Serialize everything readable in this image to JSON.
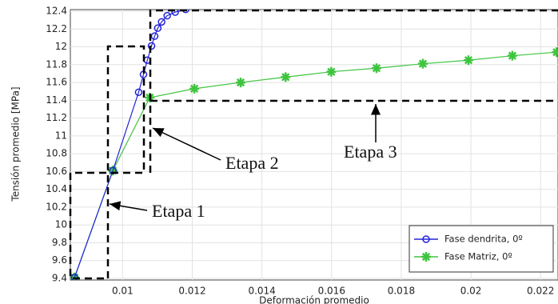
{
  "chart_data": {
    "type": "line",
    "xlabel": "Deformación promedio",
    "ylabel": "Tensión promedio [MPa]",
    "xlim": [
      0.0085,
      0.0225
    ],
    "xticks": [
      0.01,
      0.012,
      0.014,
      0.016,
      0.018,
      0.02,
      0.022
    ],
    "ylim": [
      9.4,
      12.4
    ],
    "yticks": [
      9.4,
      9.6,
      9.8,
      10,
      10.2,
      10.4,
      10.6,
      10.8,
      11,
      11.2,
      11.4,
      11.6,
      11.8,
      12,
      12.2,
      12.4
    ],
    "grid": true,
    "legend": "lower right",
    "series": [
      {
        "name": "Fase dendrita, 0º",
        "color": "#2323d8",
        "marker": "circle",
        "x": [
          0.00862,
          0.00972,
          0.01046,
          0.0106,
          0.01071,
          0.01083,
          0.01092,
          0.01101,
          0.01112,
          0.01128,
          0.01151,
          0.01181
        ],
        "values": [
          9.41,
          10.61,
          11.49,
          11.69,
          11.85,
          12.01,
          12.12,
          12.21,
          12.28,
          12.35,
          12.39,
          12.42
        ]
      },
      {
        "name": "Fase Matriz, 0º",
        "color": "#3fc43f",
        "marker": "star",
        "x": [
          0.00862,
          0.00972,
          0.01078,
          0.01206,
          0.01339,
          0.01468,
          0.01599,
          0.01729,
          0.01862,
          0.01993,
          0.02119,
          0.02246
        ],
        "values": [
          9.41,
          10.61,
          11.43,
          11.53,
          11.6,
          11.66,
          11.72,
          11.76,
          11.81,
          11.85,
          11.9,
          11.94
        ]
      }
    ],
    "annotations": [
      "Etapa 1",
      "Etapa 2",
      "Etapa 3"
    ]
  }
}
